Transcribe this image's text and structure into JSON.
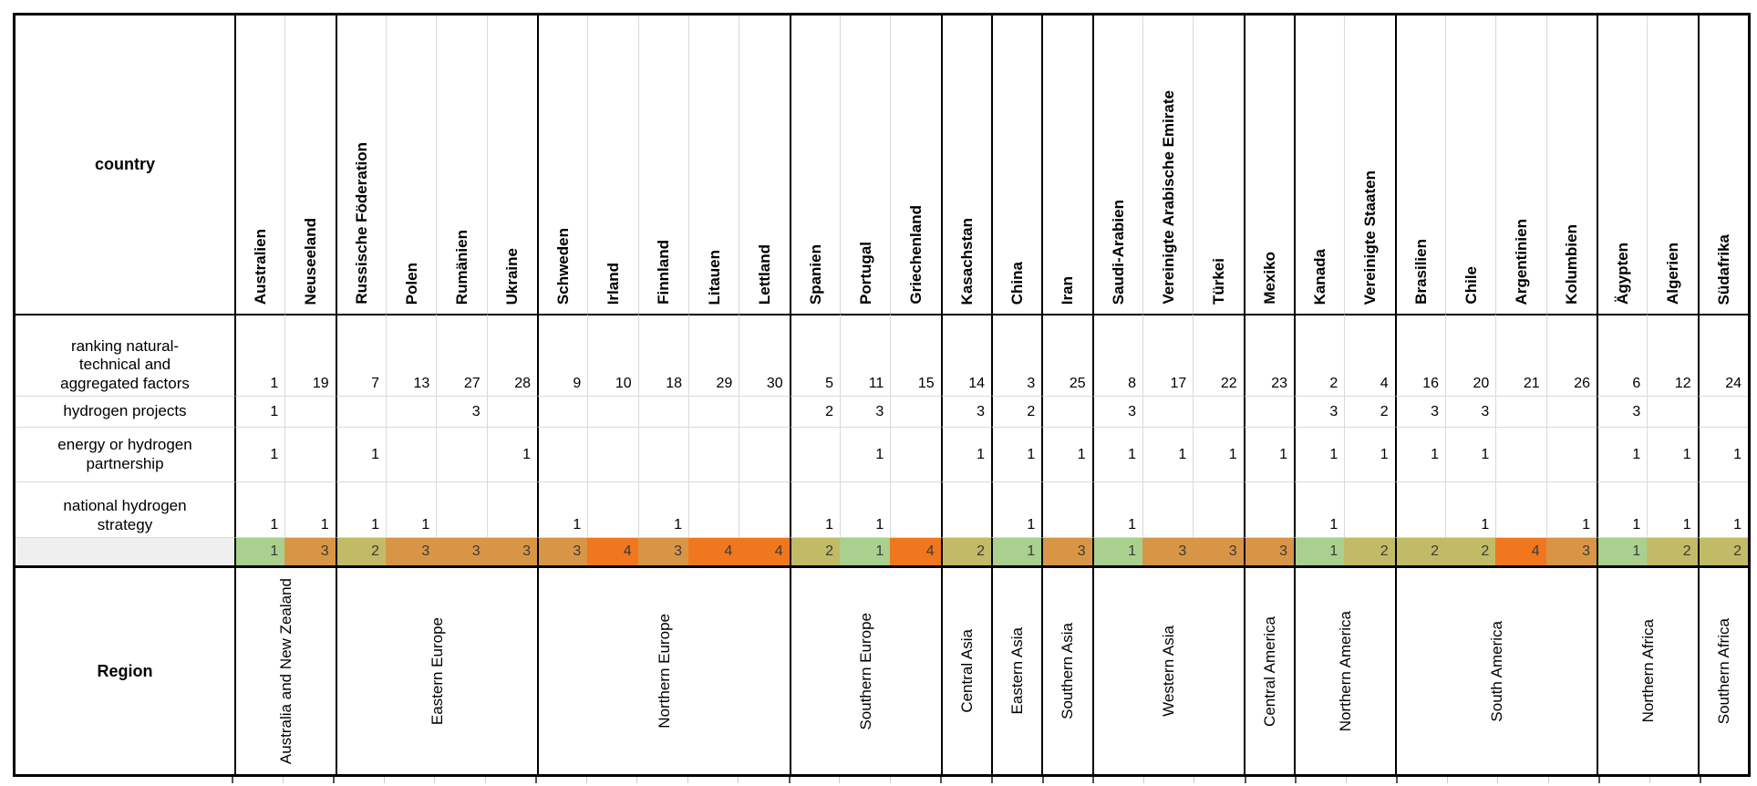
{
  "chart_data": {
    "type": "table",
    "corner_header": "country",
    "region_header": "Region",
    "columns": [
      "Australien",
      "Neuseeland",
      "Russische Föderation",
      "Polen",
      "Rumänien",
      "Ukraine",
      "Schweden",
      "Irland",
      "Finnland",
      "Litauen",
      "Lettland",
      "Spanien",
      "Portugal",
      "Griechenland",
      "Kasachstan",
      "China",
      "Iran",
      "Saudi-Arabien",
      "Vereinigte Arabische Emirate",
      "Türkei",
      "Mexiko",
      "Kanada",
      "Vereinigte Staaten",
      "Brasilien",
      "Chile",
      "Argentinien",
      "Kolumbien",
      "Ägypten",
      "Algerien",
      "Südafrika"
    ],
    "rows": [
      {
        "id": "ranking",
        "label": "ranking natural-technical and aggregated factors",
        "values": [
          1,
          19,
          7,
          13,
          27,
          28,
          9,
          10,
          18,
          29,
          30,
          5,
          11,
          15,
          14,
          3,
          25,
          8,
          17,
          22,
          23,
          2,
          4,
          16,
          20,
          21,
          26,
          6,
          12,
          24
        ]
      },
      {
        "id": "projects",
        "label": "hydrogen projects",
        "values": [
          1,
          null,
          null,
          null,
          3,
          null,
          null,
          null,
          null,
          null,
          null,
          2,
          3,
          null,
          3,
          2,
          null,
          3,
          null,
          null,
          null,
          3,
          2,
          3,
          3,
          null,
          null,
          3,
          null,
          null
        ]
      },
      {
        "id": "partnership",
        "label": "energy or hydrogen partnership",
        "values": [
          1,
          null,
          1,
          null,
          null,
          1,
          null,
          null,
          null,
          null,
          null,
          null,
          1,
          null,
          1,
          1,
          1,
          1,
          1,
          1,
          1,
          1,
          1,
          1,
          1,
          null,
          null,
          1,
          1,
          1
        ]
      },
      {
        "id": "strategy",
        "label": "national hydrogen strategy",
        "values": [
          1,
          1,
          1,
          1,
          null,
          null,
          1,
          null,
          1,
          null,
          null,
          1,
          1,
          null,
          null,
          1,
          null,
          1,
          null,
          null,
          null,
          1,
          null,
          null,
          1,
          null,
          1,
          1,
          1,
          1
        ]
      }
    ],
    "score_row": {
      "label": "",
      "values": [
        1,
        3,
        2,
        3,
        3,
        3,
        3,
        4,
        3,
        4,
        4,
        2,
        1,
        4,
        2,
        1,
        3,
        1,
        3,
        3,
        3,
        1,
        2,
        2,
        2,
        4,
        3,
        1,
        2,
        2
      ]
    },
    "score_colors": {
      "1": "#a9d08e",
      "2": "#c2bb66",
      "3": "#d99546",
      "4": "#f0771e"
    },
    "regions": [
      {
        "label": "Australia and New Zealand",
        "span": 2
      },
      {
        "label": "Eastern Europe",
        "span": 4
      },
      {
        "label": "Northern Europe",
        "span": 5
      },
      {
        "label": "Southern Europe",
        "span": 3
      },
      {
        "label": "Central Asia",
        "span": 1
      },
      {
        "label": "Eastern Asia",
        "span": 1
      },
      {
        "label": "Southern Asia",
        "span": 1
      },
      {
        "label": "Western Asia",
        "span": 3
      },
      {
        "label": "Central America",
        "span": 1
      },
      {
        "label": "Northern America",
        "span": 2
      },
      {
        "label": "South America",
        "span": 4
      },
      {
        "label": "Northern Africa",
        "span": 2
      },
      {
        "label": "Southern Africa",
        "span": 1
      }
    ]
  }
}
